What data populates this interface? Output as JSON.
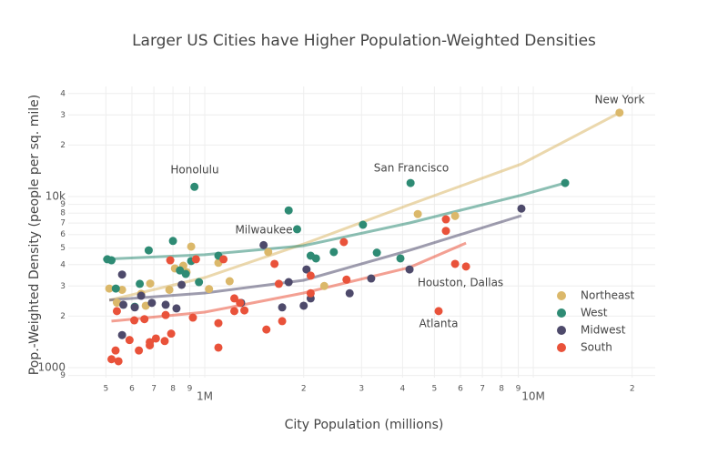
{
  "chart_data": {
    "type": "scatter",
    "title": "Larger US Cities have Higher Population-Weighted Densities",
    "x_label": "City Population (millions)",
    "y_label": "Pop.-Weighted Density (people per sq. mile)",
    "log_x": true,
    "log_y": true,
    "grid": true,
    "legend": "right",
    "xlim": [
      384000,
      23500000
    ],
    "ylim": [
      874,
      44000
    ],
    "xticks": [
      {
        "value": 500000,
        "label": "5"
      },
      {
        "value": 600000,
        "label": "6"
      },
      {
        "value": 700000,
        "label": "7"
      },
      {
        "value": 800000,
        "label": "8"
      },
      {
        "value": 900000,
        "label": "9"
      },
      {
        "value": 1000000,
        "label": "1M"
      },
      {
        "value": 2000000,
        "label": "2"
      },
      {
        "value": 3000000,
        "label": "3"
      },
      {
        "value": 4000000,
        "label": "4"
      },
      {
        "value": 5000000,
        "label": "5"
      },
      {
        "value": 6000000,
        "label": "6"
      },
      {
        "value": 7000000,
        "label": "7"
      },
      {
        "value": 8000000,
        "label": "8"
      },
      {
        "value": 9000000,
        "label": "9"
      },
      {
        "value": 10000000,
        "label": "10M"
      },
      {
        "value": 20000000,
        "label": "2"
      }
    ],
    "yticks": [
      {
        "value": 900,
        "label": "9"
      },
      1000,
      {
        "value": 2000,
        "label": "2"
      },
      {
        "value": 3000,
        "label": "3"
      },
      {
        "value": 4000,
        "label": "4"
      },
      {
        "value": 5000,
        "label": "5"
      },
      {
        "value": 6000,
        "label": "6"
      },
      {
        "value": 7000,
        "label": "7"
      },
      {
        "value": 8000,
        "label": "8"
      },
      {
        "value": 9000,
        "label": "9"
      },
      {
        "value": 10000,
        "label": "10k"
      },
      {
        "value": 20000,
        "label": "2"
      },
      {
        "value": 30000,
        "label": "3"
      },
      {
        "value": 40000,
        "label": "4"
      }
    ],
    "series": [
      {
        "name": "Northeast",
        "color": "#dbb86a",
        "x": [
          18300000,
          5780000,
          4450000,
          2310000,
          1560000,
          1190000,
          1100000,
          1030000,
          909000,
          880000,
          860000,
          811000,
          780000,
          682000,
          661000,
          640000,
          560000,
          512000,
          540000
        ],
        "values": [
          30900,
          7700,
          7900,
          3000,
          4740,
          3200,
          4100,
          2880,
          5100,
          3620,
          3940,
          3800,
          2850,
          3100,
          2300,
          2700,
          2850,
          2900,
          2400
        ],
        "fit": {
          "x": [
            512000,
            1000000,
            2000000,
            4200000,
            9200000,
            18300000
          ],
          "values": [
            2480,
            3360,
            5280,
            8960,
            15500,
            30900
          ]
        }
      },
      {
        "name": "West",
        "color": "#2e8b74",
        "x": [
          12500000,
          4230000,
          3940000,
          3340000,
          3030000,
          2470000,
          2180000,
          2100000,
          1910000,
          1800000,
          1100000,
          960000,
          930000,
          909000,
          875000,
          840000,
          800000,
          675000,
          634000,
          536000,
          505000,
          520000,
          612000
        ],
        "values": [
          12000,
          12000,
          4350,
          4700,
          6840,
          4740,
          4350,
          4510,
          6440,
          8300,
          4510,
          3160,
          11400,
          4200,
          3530,
          3700,
          5500,
          4850,
          3090,
          2900,
          4300,
          4240,
          2270
        ],
        "fit": {
          "x": [
            490000,
            1000000,
            2000000,
            4200000,
            9200000,
            12500000
          ],
          "values": [
            4300,
            4570,
            5160,
            7010,
            10200,
            12000
          ]
        }
      },
      {
        "name": "Midwest",
        "color": "#4e4a6b",
        "x": [
          9200000,
          4200000,
          3210000,
          2760000,
          2100000,
          2000000,
          2040000,
          1800000,
          1720000,
          1510000,
          1290000,
          850000,
          820000,
          760000,
          690000,
          640000,
          612000,
          560000,
          565000,
          560000
        ],
        "values": [
          8500,
          3750,
          3320,
          2720,
          2540,
          2300,
          3750,
          3160,
          2250,
          5200,
          2390,
          3050,
          2220,
          2330,
          2390,
          2630,
          2250,
          3500,
          2330,
          1550
        ],
        "fit": {
          "x": [
            512000,
            1000000,
            2000000,
            4200000,
            9200000
          ],
          "values": [
            2480,
            2730,
            3240,
            4850,
            7730
          ]
        }
      },
      {
        "name": "South",
        "color": "#e9523a",
        "x": [
          5420000,
          5420000,
          5780000,
          6240000,
          5150000,
          2650000,
          2700000,
          2100000,
          2100000,
          1630000,
          1680000,
          1720000,
          1540000,
          1320000,
          1280000,
          1230000,
          1230000,
          1140000,
          1100000,
          1100000,
          940000,
          920000,
          790000,
          760000,
          755000,
          710000,
          680000,
          680000,
          655000,
          630000,
          610000,
          590000,
          540000,
          535000,
          520000,
          546000,
          785000
        ],
        "values": [
          7360,
          6300,
          4040,
          3900,
          2140,
          5420,
          3270,
          3450,
          2720,
          4040,
          3090,
          1870,
          1670,
          2160,
          2390,
          2540,
          2140,
          4300,
          1310,
          1820,
          4300,
          1960,
          1580,
          2030,
          1430,
          1480,
          1350,
          1410,
          1920,
          1260,
          1890,
          1450,
          2140,
          1260,
          1120,
          1090,
          4240
        ],
        "fit": {
          "x": [
            520000,
            1000000,
            2000000,
            4200000,
            6240000
          ],
          "values": [
            1870,
            2110,
            2730,
            3850,
            5350
          ]
        }
      }
    ],
    "annotations": [
      "New York",
      "Honolulu",
      "San Francisco",
      "Milwaukee",
      "Houston, Dallas",
      "Atlanta"
    ]
  }
}
